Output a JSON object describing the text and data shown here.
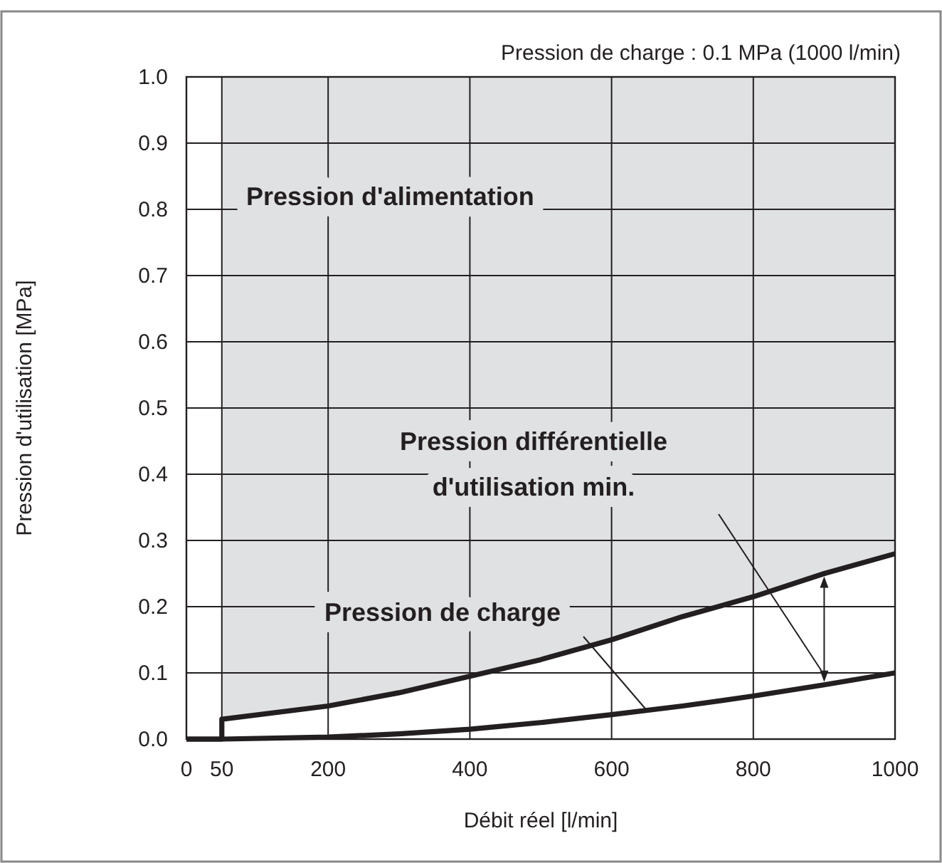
{
  "chart_data": {
    "type": "line",
    "title": "Pression de charge : 0.1 MPa (1000 l/min)",
    "xlabel": "Débit réel [l/min]",
    "ylabel": "Pression d'utilisation [MPa]",
    "xlim": [
      0,
      1000
    ],
    "xticks": [
      0,
      50,
      200,
      400,
      600,
      800,
      1000
    ],
    "ylim": [
      0,
      1.0
    ],
    "yticks": [
      {
        "value": 0,
        "label": "0.0"
      },
      0.1,
      0.2,
      0.3,
      0.4,
      0.5,
      0.6,
      0.7,
      0.8,
      0.9,
      {
        "value": 1.0,
        "label": "1.0"
      }
    ],
    "grid": true,
    "bands": [
      {
        "axis": "x",
        "from": 50,
        "to": 1000,
        "color": "#e0e1e3"
      }
    ],
    "line_style": "solid",
    "marker": "none",
    "series": [
      {
        "color": "#231f20",
        "x": [
          0,
          50,
          50,
          200,
          300,
          400,
          500,
          600,
          700,
          800,
          900,
          1000
        ],
        "values": [
          0,
          0,
          0.03,
          0.05,
          0.07,
          0.095,
          0.12,
          0.15,
          0.185,
          0.215,
          0.25,
          0.28
        ]
      },
      {
        "color": "#231f20",
        "x": [
          0,
          50,
          200,
          300,
          400,
          500,
          600,
          700,
          800,
          900,
          1000
        ],
        "values": [
          0,
          0,
          0.003,
          0.008,
          0.015,
          0.025,
          0.037,
          0.05,
          0.065,
          0.082,
          0.1
        ]
      }
    ],
    "annotations": [
      "Pression d'alimentation",
      "Pression différentielle\nd'utilisation min.",
      {
        "text": "Pression de charge",
        "x": 650,
        "y": 0.043
      }
    ]
  }
}
